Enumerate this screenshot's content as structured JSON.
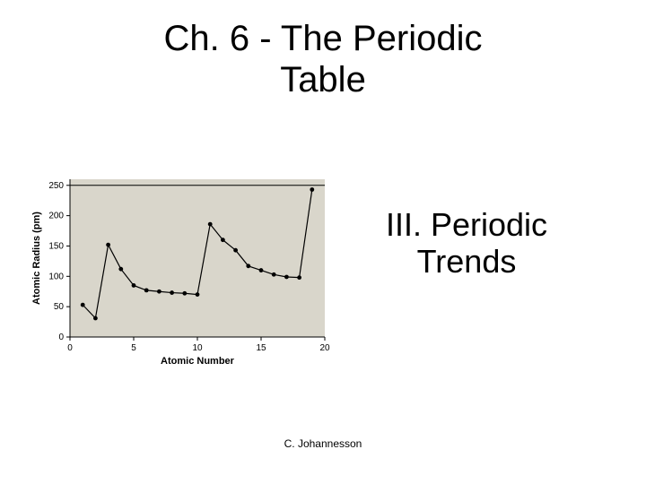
{
  "title_line1": "Ch. 6 - The Periodic",
  "title_line2": "Table",
  "subtitle_line1": "III. Periodic",
  "subtitle_line2": "Trends",
  "footer": "C. Johannesson",
  "chart": {
    "type": "scatter-line",
    "background_color": "#d9d6cb",
    "page_background": "#ffffff",
    "axis_color": "#000000",
    "point_color": "#000000",
    "line_color": "#000000",
    "text_color": "#000000",
    "plot_bg_color": "#d9d6cb",
    "xlabel": "Atomic Number",
    "ylabel": "Atomic Radius (pm)",
    "xlabel_fontsize": 11,
    "ylabel_fontsize": 11,
    "tick_fontsize": 10,
    "xlim": [
      0,
      20
    ],
    "ylim": [
      0,
      260
    ],
    "xtick_step": 5,
    "yticks": [
      0,
      50,
      100,
      150,
      200,
      250
    ],
    "marker_radius": 2.4,
    "line_width": 1.2,
    "x": [
      1,
      2,
      3,
      4,
      5,
      6,
      7,
      8,
      9,
      10,
      11,
      12,
      13,
      14,
      15,
      16,
      17,
      18,
      19
    ],
    "y": [
      53,
      31,
      152,
      112,
      85,
      77,
      75,
      73,
      72,
      70,
      186,
      160,
      143,
      117,
      110,
      103,
      99,
      98,
      243
    ]
  }
}
